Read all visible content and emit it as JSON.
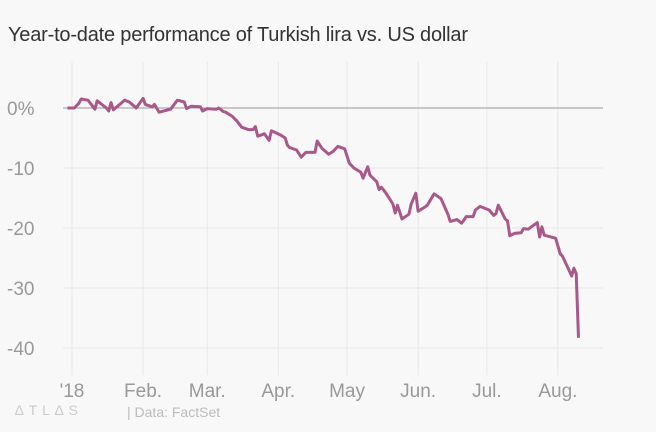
{
  "title": "Year-to-date performance of Turkish lira vs. US dollar",
  "logo": "ATLAS",
  "source": "| Data: FactSet",
  "colors": {
    "line": "#a8598a",
    "grid": "#e8e8e8",
    "zero_line": "#999999",
    "background": "#f8f8f8"
  },
  "chart_data": {
    "type": "line",
    "title": "Year-to-date performance of Turkish lira vs. US dollar",
    "xlabel": "",
    "ylabel": "",
    "ylim": [
      -43.7,
      7.7
    ],
    "xlim": [
      "2017-12-28",
      "2018-08-20"
    ],
    "grid": true,
    "yticks": [
      {
        "value": 0,
        "label": "0%"
      },
      {
        "value": -10,
        "label": "-10"
      },
      {
        "value": -20,
        "label": "-20"
      },
      {
        "value": -30,
        "label": "-30"
      },
      {
        "value": -40,
        "label": "-40"
      }
    ],
    "xticks": [
      {
        "date": "2018-01-01",
        "label": "'18"
      },
      {
        "date": "2018-02-01",
        "label": "Feb."
      },
      {
        "date": "2018-03-01",
        "label": "Mar."
      },
      {
        "date": "2018-04-01",
        "label": "Apr."
      },
      {
        "date": "2018-05-01",
        "label": "May"
      },
      {
        "date": "2018-06-01",
        "label": "Jun."
      },
      {
        "date": "2018-07-01",
        "label": "Jul."
      },
      {
        "date": "2018-08-01",
        "label": "Aug."
      }
    ],
    "series": [
      {
        "x": [
          "2017-12-30",
          "2018-01-02",
          "2018-01-04",
          "2018-01-05",
          "2018-01-08",
          "2018-01-11",
          "2018-01-12",
          "2018-01-16",
          "2018-01-17",
          "2018-01-18",
          "2018-01-19",
          "2018-01-24",
          "2018-01-26",
          "2018-01-29",
          "2018-02-01",
          "2018-02-02",
          "2018-02-05",
          "2018-02-06",
          "2018-02-08",
          "2018-02-13",
          "2018-02-16",
          "2018-02-19",
          "2018-02-20",
          "2018-02-22",
          "2018-02-26",
          "2018-02-27",
          "2018-03-01",
          "2018-03-05",
          "2018-03-06",
          "2018-03-08",
          "2018-03-09",
          "2018-03-12",
          "2018-03-14",
          "2018-03-16",
          "2018-03-19",
          "2018-03-21",
          "2018-03-22",
          "2018-03-23",
          "2018-03-26",
          "2018-03-28",
          "2018-03-29",
          "2018-04-02",
          "2018-04-04",
          "2018-04-05",
          "2018-04-06",
          "2018-04-09",
          "2018-04-11",
          "2018-04-13",
          "2018-04-17",
          "2018-04-18",
          "2018-04-20",
          "2018-04-23",
          "2018-04-25",
          "2018-04-27",
          "2018-04-30",
          "2018-05-02",
          "2018-05-04",
          "2018-05-07",
          "2018-05-08",
          "2018-05-10",
          "2018-05-11",
          "2018-05-14",
          "2018-05-15",
          "2018-05-16",
          "2018-05-18",
          "2018-05-21",
          "2018-05-22",
          "2018-05-23",
          "2018-05-25",
          "2018-05-28",
          "2018-05-29",
          "2018-05-31",
          "2018-06-01",
          "2018-06-04",
          "2018-06-05",
          "2018-06-08",
          "2018-06-11",
          "2018-06-14",
          "2018-06-15",
          "2018-06-18",
          "2018-06-20",
          "2018-06-21",
          "2018-06-22",
          "2018-06-25",
          "2018-06-26",
          "2018-06-28",
          "2018-07-02",
          "2018-07-04",
          "2018-07-05",
          "2018-07-06",
          "2018-07-09",
          "2018-07-10",
          "2018-07-11",
          "2018-07-13",
          "2018-07-16",
          "2018-07-17",
          "2018-07-19",
          "2018-07-23",
          "2018-07-24",
          "2018-07-25",
          "2018-07-26",
          "2018-07-31",
          "2018-08-02",
          "2018-08-03",
          "2018-08-07",
          "2018-08-08",
          "2018-08-09",
          "2018-08-10"
        ],
        "y": [
          0,
          0,
          0.8,
          1.5,
          1.3,
          -0.2,
          1.2,
          0,
          -0.5,
          0.9,
          -0.3,
          1.3,
          1.0,
          0,
          1.6,
          0.6,
          0.2,
          0.6,
          -0.7,
          -0.2,
          1.3,
          1.0,
          -0.1,
          0.3,
          0.2,
          -0.5,
          -0.1,
          -0.2,
          0,
          -0.6,
          -0.7,
          -1.4,
          -2.2,
          -3.2,
          -3.6,
          -3.6,
          -3.1,
          -4.7,
          -4.3,
          -5.4,
          -3.8,
          -4.5,
          -5.0,
          -6.2,
          -6.6,
          -7.0,
          -8.2,
          -7.4,
          -7.4,
          -5.5,
          -6.7,
          -7.7,
          -7.2,
          -6.4,
          -6.8,
          -9.2,
          -10.0,
          -10.7,
          -11.7,
          -9.8,
          -11.2,
          -12.3,
          -13.6,
          -13.2,
          -14.2,
          -16.0,
          -17.5,
          -16.2,
          -18.5,
          -17.7,
          -16.0,
          -14.2,
          -17.2,
          -16.5,
          -16.2,
          -14.3,
          -15.1,
          -17.7,
          -18.9,
          -18.6,
          -19.2,
          -18.7,
          -18.1,
          -18.1,
          -17.0,
          -16.4,
          -17.0,
          -17.9,
          -17.6,
          -16.2,
          -18.5,
          -18.8,
          -21.3,
          -20.9,
          -20.8,
          -20.1,
          -20.2,
          -19.1,
          -21.5,
          -19.8,
          -21.2,
          -21.7,
          -24.3,
          -24.7,
          -28.0,
          -26.7,
          -27.6,
          -38.3
        ]
      }
    ]
  }
}
